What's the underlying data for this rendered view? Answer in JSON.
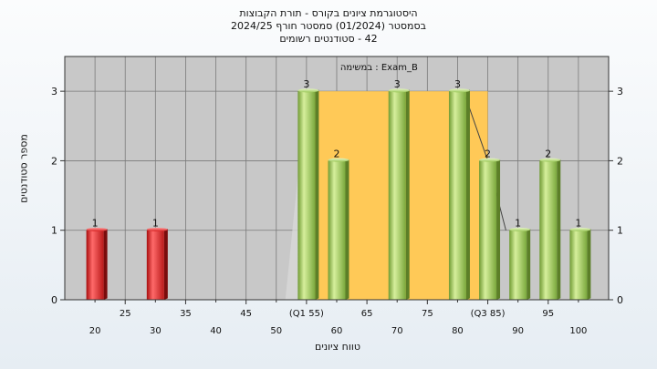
{
  "header": {
    "title": "היסטוגרמת ציונים בקורס - תורת הקבוצות",
    "subtitle": "בסמסטר  (01/2024)  סמסטר חורף 2024/25",
    "students": "42 - סטודנטים רשומים"
  },
  "chart_data": {
    "type": "bar",
    "title": "היסטוגרמת ציונים בקורס - תורת הקבוצות",
    "xlabel": "טווח ציונים",
    "ylabel": "מספר סטודנטים",
    "annotation": "במשימה : Exam_B",
    "xlim": [
      15,
      105
    ],
    "ylim": [
      0,
      3.5
    ],
    "y_ticks": [
      0,
      1,
      2,
      3
    ],
    "x_ticks_upper": [
      "25",
      "35",
      "45",
      "(Q1 55)",
      "65",
      "75",
      "(Q3 85)",
      "95"
    ],
    "x_ticks_upper_values": [
      25,
      35,
      45,
      55,
      65,
      75,
      85,
      95
    ],
    "x_ticks_lower": [
      "20",
      "30",
      "40",
      "50",
      "60",
      "70",
      "80",
      "90",
      "100"
    ],
    "x_ticks_lower_values": [
      20,
      30,
      40,
      50,
      60,
      70,
      80,
      90,
      100
    ],
    "bars": [
      {
        "x": 20,
        "value": 1,
        "color": "red"
      },
      {
        "x": 30,
        "value": 1,
        "color": "red"
      },
      {
        "x": 55,
        "value": 3,
        "color": "green"
      },
      {
        "x": 60,
        "value": 2,
        "color": "green"
      },
      {
        "x": 70,
        "value": 3,
        "color": "green"
      },
      {
        "x": 80,
        "value": 3,
        "color": "green"
      },
      {
        "x": 85,
        "value": 2,
        "color": "green"
      },
      {
        "x": 90,
        "value": 1,
        "color": "green"
      },
      {
        "x": 95,
        "value": 2,
        "color": "green"
      },
      {
        "x": 100,
        "value": 1,
        "color": "green"
      }
    ],
    "iqr_band": {
      "x_start": 55,
      "x_end": 85,
      "y": 3
    },
    "grid": true,
    "colors": {
      "plot_bg": "#c8c8c8",
      "iqr_fill": "#ffc957",
      "red_bar": "#e02020",
      "green_bar": "#9cc95a"
    }
  }
}
